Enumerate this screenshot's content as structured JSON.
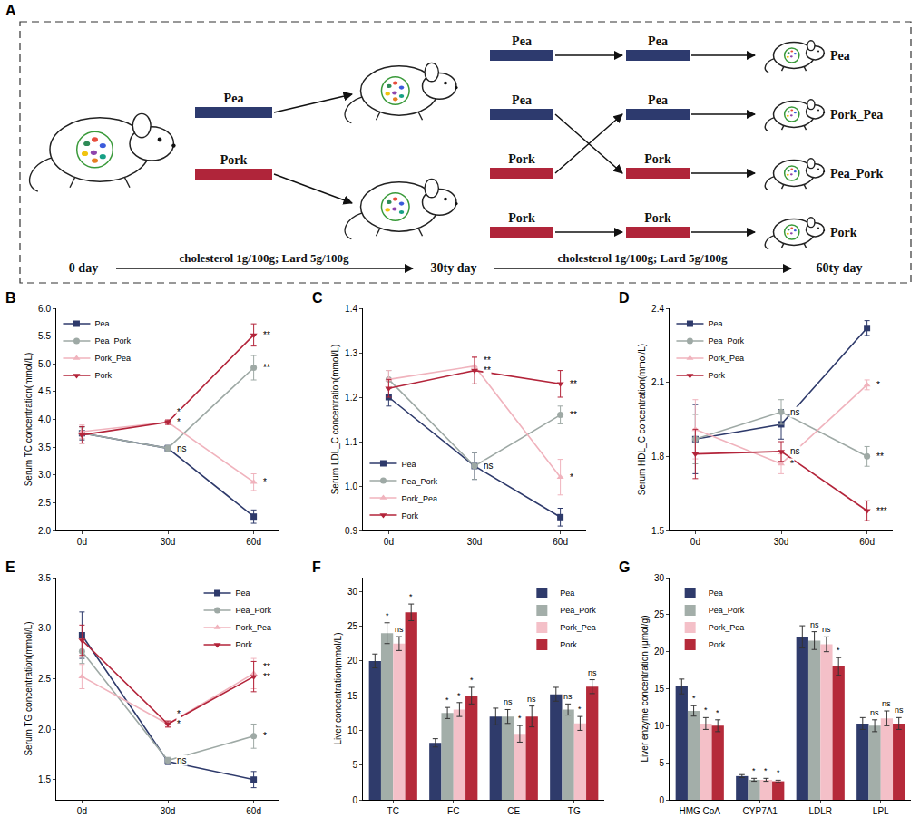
{
  "diagram": {
    "panel": "A",
    "first_diets": [
      "Pea",
      "Pork"
    ],
    "second_diets": [
      "Pea",
      "Pea",
      "Pork",
      "Pork"
    ],
    "third_diets": [
      "Pea",
      "Pea",
      "Pork",
      "Pork"
    ],
    "groups": [
      "Pea",
      "Pork_Pea",
      "Pea_Pork",
      "Pork"
    ],
    "timeline": [
      "0 day",
      "cholesterol 1g/100g; Lard 5g/100g",
      "30ty day",
      "cholesterol 1g/100g; Lard 5g/100g",
      "60ty day"
    ]
  },
  "chart_data": [
    {
      "panel": "B",
      "type": "line",
      "y_label": "Serum TC concentration(mmol/L)",
      "categories": [
        "0d",
        "30d",
        "60d"
      ],
      "ylim": [
        2,
        6
      ],
      "yticks": [
        {
          "value": 2,
          "label": "2.0"
        },
        2.5,
        {
          "value": 3,
          "label": "3.0"
        },
        3.5,
        {
          "value": 4,
          "label": "4.0"
        },
        4.5,
        {
          "value": 5,
          "label": "5.0"
        },
        5.5,
        {
          "value": 6,
          "label": "6.0"
        }
      ],
      "legend": "top left",
      "series": [
        {
          "name": "Pea",
          "color": "#2e3a6b",
          "marker": "square",
          "values": [
            3.75,
            3.48,
            2.25
          ],
          "errors": [
            0.12,
            0.05,
            0.12
          ],
          "significance": [
            null,
            null,
            null
          ]
        },
        {
          "name": "Pea_Pork",
          "color": "#9ea9a5",
          "marker": "circle",
          "values": [
            3.75,
            3.48,
            4.93
          ],
          "errors": [
            0.1,
            0.05,
            0.22
          ],
          "significance": [
            null,
            "ns",
            "**"
          ]
        },
        {
          "name": "Pork_Pea",
          "color": "#f0b3bd",
          "marker": "triangle-up",
          "values": [
            3.78,
            3.95,
            2.87
          ],
          "errors": [
            0.12,
            0.04,
            0.15
          ],
          "significance": [
            null,
            "*",
            "*"
          ]
        },
        {
          "name": "Pork",
          "color": "#b3243a",
          "marker": "triangle-down",
          "values": [
            3.72,
            3.95,
            5.52
          ],
          "errors": [
            0.15,
            0.04,
            0.2
          ],
          "significance": [
            null,
            "*",
            "**"
          ]
        }
      ]
    },
    {
      "panel": "C",
      "type": "line",
      "y_label": "Serum LDL_C concentration(mmol/L)",
      "categories": [
        "0d",
        "30d",
        "60d"
      ],
      "ylim": [
        0.9,
        1.4
      ],
      "yticks": [
        0.9,
        {
          "value": 1,
          "label": "1.0"
        },
        1.1,
        1.2,
        1.3,
        1.4
      ],
      "legend": "bottom left",
      "series": [
        {
          "name": "Pea",
          "color": "#2e3a6b",
          "marker": "square",
          "values": [
            1.2,
            1.045,
            0.93
          ],
          "errors": [
            0.02,
            0.03,
            0.02
          ],
          "significance": [
            null,
            null,
            null
          ]
        },
        {
          "name": "Pea_Pork",
          "color": "#9ea9a5",
          "marker": "circle",
          "values": [
            1.24,
            1.045,
            1.16
          ],
          "errors": [
            0.02,
            0.03,
            0.02
          ],
          "significance": [
            null,
            "ns",
            "**"
          ]
        },
        {
          "name": "Pork_Pea",
          "color": "#f0b3bd",
          "marker": "triangle-up",
          "values": [
            1.24,
            1.27,
            1.02
          ],
          "errors": [
            0.02,
            0.02,
            0.04
          ],
          "significance": [
            null,
            "**",
            "*"
          ]
        },
        {
          "name": "Pork",
          "color": "#b3243a",
          "marker": "triangle-down",
          "values": [
            1.22,
            1.26,
            1.23
          ],
          "errors": [
            0.02,
            0.03,
            0.03
          ],
          "significance": [
            null,
            "**",
            "**"
          ]
        }
      ]
    },
    {
      "panel": "D",
      "type": "line",
      "y_label": "Serum HDL_C concentration(mmol/L)",
      "categories": [
        "0d",
        "30d",
        "60d"
      ],
      "ylim": [
        1.5,
        2.4
      ],
      "yticks": [
        1.5,
        1.8,
        2.1,
        2.4
      ],
      "legend": "top left",
      "series": [
        {
          "name": "Pea",
          "color": "#2e3a6b",
          "marker": "square",
          "values": [
            1.87,
            1.93,
            2.32
          ],
          "errors": [
            0.14,
            0.06,
            0.03
          ],
          "significance": [
            null,
            null,
            null
          ]
        },
        {
          "name": "Pea_Pork",
          "color": "#9ea9a5",
          "marker": "circle",
          "values": [
            1.87,
            1.98,
            1.8
          ],
          "errors": [
            0.1,
            0.05,
            0.04
          ],
          "significance": [
            null,
            "ns",
            "**"
          ]
        },
        {
          "name": "Pork_Pea",
          "color": "#f0b3bd",
          "marker": "triangle-up",
          "values": [
            1.91,
            1.77,
            2.09
          ],
          "errors": [
            0.12,
            0.04,
            0.02
          ],
          "significance": [
            null,
            "*",
            "*"
          ]
        },
        {
          "name": "Pork",
          "color": "#b3243a",
          "marker": "triangle-down",
          "values": [
            1.81,
            1.82,
            1.58
          ],
          "errors": [
            0.1,
            0.04,
            0.04
          ],
          "significance": [
            null,
            "ns",
            "***"
          ]
        }
      ]
    },
    {
      "panel": "E",
      "type": "line",
      "y_label": "Serum TG concentration(mmol/L)",
      "categories": [
        "0d",
        "30d",
        "60d"
      ],
      "ylim": [
        1.3,
        3.5
      ],
      "yticks": [
        1.5,
        {
          "value": 2,
          "label": "2.0"
        },
        2.5,
        {
          "value": 3,
          "label": "3.0"
        },
        3.5
      ],
      "legend": "top right",
      "series": [
        {
          "name": "Pea",
          "color": "#2e3a6b",
          "marker": "square",
          "values": [
            2.93,
            1.68,
            1.5
          ],
          "errors": [
            0.23,
            0.03,
            0.08
          ],
          "significance": [
            null,
            null,
            null
          ]
        },
        {
          "name": "Pea_Pork",
          "color": "#9ea9a5",
          "marker": "circle",
          "values": [
            2.77,
            1.69,
            1.93
          ],
          "errors": [
            0.12,
            0.03,
            0.12
          ],
          "significance": [
            null,
            "ns",
            "*"
          ]
        },
        {
          "name": "Pork_Pea",
          "color": "#f0b3bd",
          "marker": "triangle-up",
          "values": [
            2.52,
            2.05,
            2.55
          ],
          "errors": [
            0.12,
            0.03,
            0.15
          ],
          "significance": [
            null,
            "*",
            "**"
          ]
        },
        {
          "name": "Pork",
          "color": "#b3243a",
          "marker": "triangle-down",
          "values": [
            2.88,
            2.05,
            2.52
          ],
          "errors": [
            0.15,
            0.03,
            0.15
          ],
          "significance": [
            null,
            "*",
            "**"
          ]
        }
      ]
    },
    {
      "panel": "F",
      "type": "bar",
      "y_label": "Liver concentration(mmol/L)",
      "categories": [
        "TC",
        "FC",
        "CE",
        "TG"
      ],
      "ylim": [
        0,
        32
      ],
      "yticks": [
        0,
        5,
        10,
        15,
        20,
        25,
        30
      ],
      "legend": "top right",
      "series": [
        {
          "name": "Pea",
          "color": "#2f3b6b",
          "values": [
            20,
            8.2,
            12,
            15.2
          ],
          "errors": [
            1,
            0.6,
            1.2,
            1
          ],
          "significance": [
            null,
            null,
            null,
            null
          ]
        },
        {
          "name": "Pea_Pork",
          "color": "#a3aea9",
          "values": [
            24,
            12.5,
            12,
            13
          ],
          "errors": [
            1.5,
            0.8,
            1,
            0.8
          ],
          "significance": [
            "*",
            "*",
            "ns",
            "ns"
          ]
        },
        {
          "name": "Pork_Pea",
          "color": "#f4c0c8",
          "values": [
            22.5,
            13,
            9.5,
            11
          ],
          "errors": [
            1,
            1,
            1.2,
            1
          ],
          "significance": [
            "ns",
            "*",
            "*",
            "*"
          ]
        },
        {
          "name": "Pork",
          "color": "#b52a3a",
          "values": [
            27,
            15,
            12,
            16.3
          ],
          "errors": [
            1.2,
            1.2,
            1.5,
            1
          ],
          "significance": [
            "*",
            "*",
            "ns",
            "ns"
          ]
        }
      ]
    },
    {
      "panel": "G",
      "type": "bar",
      "y_label": "Liver enzyme concentration (μmol/g)",
      "categories": [
        "HMG CoA",
        "CYP7A1",
        "LDLR",
        "LPL"
      ],
      "ylim": [
        0,
        30
      ],
      "yticks": [
        0,
        5,
        10,
        15,
        20,
        25,
        30
      ],
      "legend": "top left",
      "series": [
        {
          "name": "Pea",
          "color": "#2f3b6b",
          "values": [
            15.3,
            3.2,
            22,
            10.3
          ],
          "errors": [
            1,
            0.2,
            1.5,
            0.8
          ],
          "significance": [
            null,
            null,
            null,
            null
          ]
        },
        {
          "name": "Pea_Pork",
          "color": "#a3aea9",
          "values": [
            12,
            2.7,
            21.5,
            10
          ],
          "errors": [
            0.7,
            0.2,
            1.2,
            0.8
          ],
          "significance": [
            "*",
            "*",
            "ns",
            "ns"
          ]
        },
        {
          "name": "Pork_Pea",
          "color": "#f4c0c8",
          "values": [
            10.3,
            2.7,
            21,
            11
          ],
          "errors": [
            0.8,
            0.2,
            1,
            1
          ],
          "significance": [
            "*",
            "*",
            "ns",
            "ns"
          ]
        },
        {
          "name": "Pork",
          "color": "#b52a3a",
          "values": [
            10,
            2.5,
            18,
            10.3
          ],
          "errors": [
            0.8,
            0.15,
            1.2,
            0.8
          ],
          "significance": [
            "*",
            "*",
            "*",
            "ns"
          ]
        }
      ]
    }
  ]
}
